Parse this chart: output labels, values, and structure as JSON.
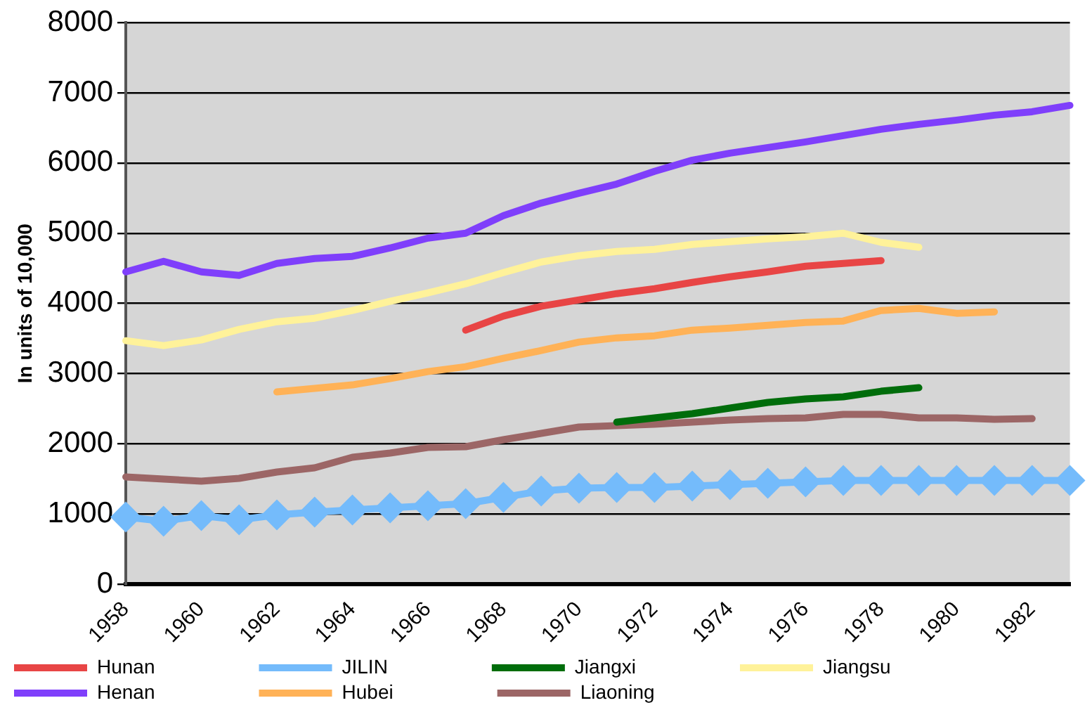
{
  "chart_data": {
    "type": "line",
    "ylabel": "In units of 10,000",
    "categories": [
      "1958",
      null,
      "1960",
      null,
      "1962",
      null,
      "1964",
      null,
      "1966",
      null,
      "1968",
      null,
      "1970",
      null,
      "1972",
      null,
      "1974",
      null,
      "1976",
      null,
      "1978",
      null,
      "1980",
      null,
      "1982",
      null
    ],
    "ylim": [
      0,
      8000
    ],
    "yticks": [
      0,
      1000,
      2000,
      3000,
      4000,
      5000,
      6000,
      7000,
      8000
    ],
    "grid": "y",
    "legend": "bottom",
    "marker": "none",
    "line_style": "solid",
    "series": [
      {
        "name": "Hunan",
        "color": "#e84545",
        "values": [
          null,
          null,
          null,
          null,
          null,
          null,
          null,
          null,
          null,
          3620,
          3820,
          3960,
          4050,
          4140,
          4210,
          4300,
          4380,
          4450,
          4530,
          4570,
          4610,
          null,
          null,
          null,
          null,
          null
        ]
      },
      {
        "name": "JILIN",
        "color": "#74bbfb",
        "marker": "diamond",
        "values": [
          960,
          900,
          980,
          920,
          990,
          1030,
          1060,
          1090,
          1120,
          1150,
          1240,
          1330,
          1370,
          1380,
          1380,
          1400,
          1420,
          1440,
          1460,
          1480,
          1480,
          1480,
          1480,
          1480,
          1480,
          1480
        ]
      },
      {
        "name": "Jiangxi",
        "color": "#006d0b",
        "values": [
          null,
          null,
          null,
          null,
          null,
          null,
          null,
          null,
          null,
          null,
          null,
          null,
          null,
          2310,
          2370,
          2430,
          2510,
          2590,
          2640,
          2670,
          2750,
          2800,
          null,
          null,
          null,
          null
        ]
      },
      {
        "name": "Jiangsu",
        "color": "#fff29a",
        "values": [
          3470,
          3400,
          3480,
          3630,
          3740,
          3790,
          3900,
          4030,
          4150,
          4280,
          4440,
          4590,
          4680,
          4740,
          4770,
          4840,
          4880,
          4920,
          4950,
          5000,
          4870,
          4800,
          null,
          null,
          null,
          null
        ]
      },
      {
        "name": "Henan",
        "color": "#7f3ffb",
        "values": [
          4450,
          4600,
          4450,
          4400,
          4570,
          4640,
          4670,
          4790,
          4930,
          5000,
          5250,
          5430,
          5570,
          5700,
          5880,
          6040,
          6140,
          6220,
          6300,
          6390,
          6480,
          6550,
          6610,
          6680,
          6730,
          6820
        ]
      },
      {
        "name": "Hubei",
        "color": "#ffb257",
        "values": [
          null,
          null,
          null,
          null,
          2740,
          2790,
          2840,
          2930,
          3030,
          3100,
          3220,
          3330,
          3450,
          3510,
          3540,
          3620,
          3650,
          3690,
          3730,
          3750,
          3900,
          3930,
          3860,
          3880,
          null,
          null
        ]
      },
      {
        "name": "Liaoning",
        "color": "#9c6666",
        "values": [
          1530,
          1500,
          1470,
          1510,
          1600,
          1660,
          1810,
          1870,
          1950,
          1960,
          2060,
          2150,
          2240,
          2260,
          2280,
          2310,
          2340,
          2360,
          2370,
          2420,
          2420,
          2370,
          2370,
          2350,
          2360,
          null
        ]
      }
    ]
  }
}
